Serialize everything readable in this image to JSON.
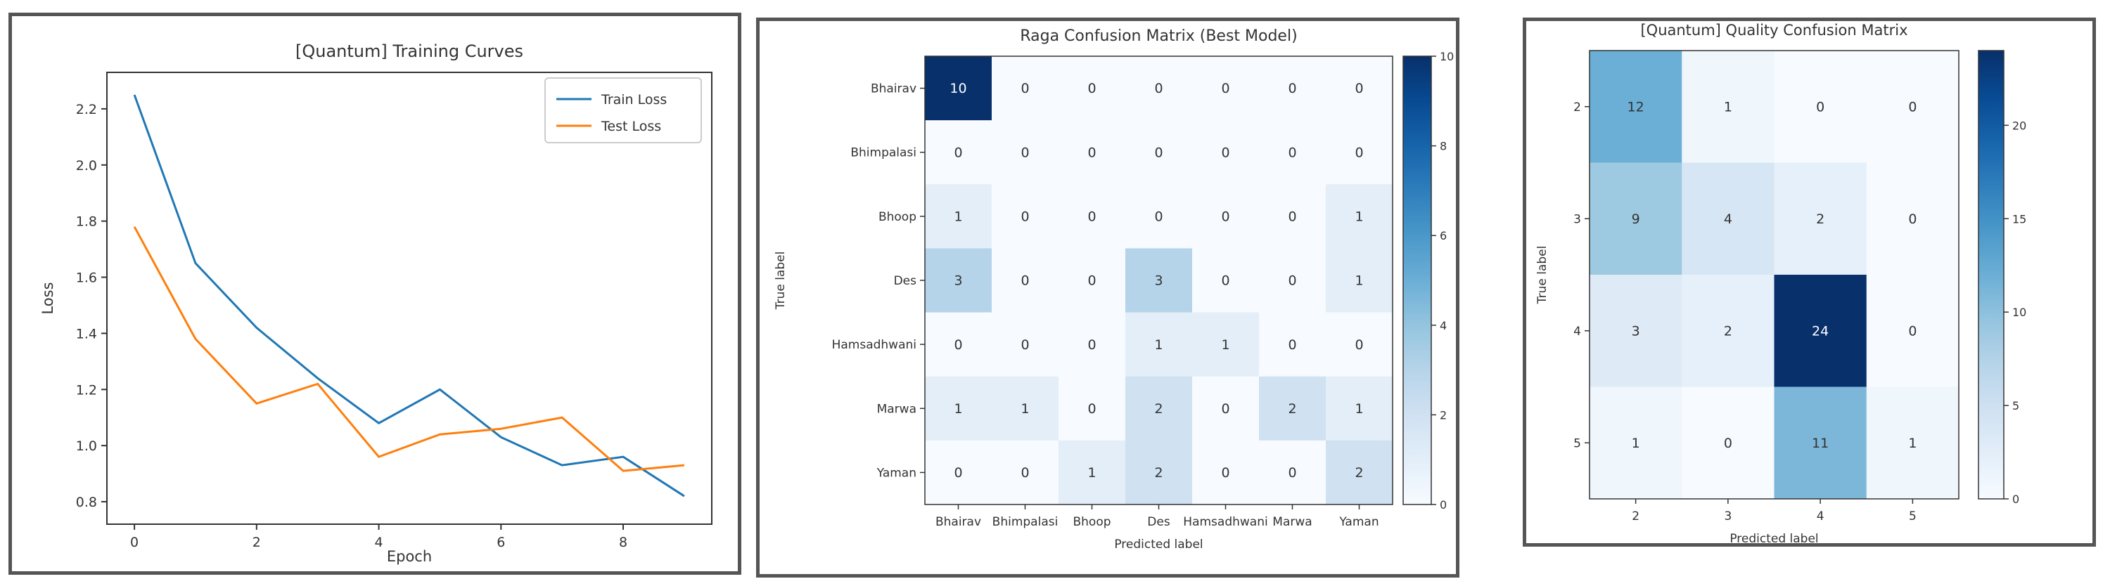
{
  "chart_data": [
    {
      "type": "line",
      "title": "[Quantum] Training Curves",
      "xlabel": "Epoch",
      "ylabel": "Loss",
      "x": [
        0,
        1,
        2,
        3,
        4,
        5,
        6,
        7,
        8,
        9
      ],
      "xticks": [
        "0",
        "2",
        "4",
        "6",
        "8"
      ],
      "yticks": [
        "0.8",
        "1.0",
        "1.2",
        "1.4",
        "1.6",
        "1.8",
        "2.0",
        "2.2"
      ],
      "xlim": [
        -0.45,
        9.45
      ],
      "ylim": [
        0.72,
        2.33
      ],
      "grid": false,
      "legend_position": "upper right",
      "series": [
        {
          "name": "Train Loss",
          "color": "#1f77b4",
          "values": [
            2.25,
            1.65,
            1.42,
            1.24,
            1.08,
            1.2,
            1.03,
            0.93,
            0.96,
            0.82
          ]
        },
        {
          "name": "Test Loss",
          "color": "#ff7f0e",
          "values": [
            1.78,
            1.38,
            1.15,
            1.22,
            0.96,
            1.04,
            1.06,
            1.1,
            0.91,
            0.93
          ]
        }
      ]
    },
    {
      "type": "heatmap",
      "title": "Raga Confusion Matrix (Best Model)",
      "xlabel": "Predicted label",
      "ylabel": "True label",
      "x_categories": [
        "Bhairav",
        "Bhimpalasi",
        "Bhoop",
        "Des",
        "Hamsadhwani",
        "Marwa",
        "Yaman"
      ],
      "y_categories": [
        "Bhairav",
        "Bhimpalasi",
        "Bhoop",
        "Des",
        "Hamsadhwani",
        "Marwa",
        "Yaman"
      ],
      "matrix": [
        [
          10,
          0,
          0,
          0,
          0,
          0,
          0
        ],
        [
          0,
          0,
          0,
          0,
          0,
          0,
          0
        ],
        [
          1,
          0,
          0,
          0,
          0,
          0,
          1
        ],
        [
          3,
          0,
          0,
          3,
          0,
          0,
          1
        ],
        [
          0,
          0,
          0,
          1,
          1,
          0,
          0
        ],
        [
          1,
          1,
          0,
          2,
          0,
          2,
          1
        ],
        [
          0,
          0,
          1,
          2,
          0,
          0,
          2
        ]
      ],
      "colormap": "Blues",
      "vmin": 0,
      "vmax": 10,
      "colorbar_ticks": [
        "0",
        "2",
        "4",
        "6",
        "8",
        "10"
      ]
    },
    {
      "type": "heatmap",
      "title": "[Quantum] Quality Confusion Matrix",
      "xlabel": "Predicted label",
      "ylabel": "True label",
      "x_categories": [
        "2",
        "3",
        "4",
        "5"
      ],
      "y_categories": [
        "2",
        "3",
        "4",
        "5"
      ],
      "matrix": [
        [
          12,
          1,
          0,
          0
        ],
        [
          9,
          4,
          2,
          0
        ],
        [
          3,
          2,
          24,
          0
        ],
        [
          1,
          0,
          11,
          1
        ]
      ],
      "colormap": "Blues",
      "vmin": 0,
      "vmax": 24,
      "colorbar_ticks": [
        "0",
        "5",
        "10",
        "15",
        "20"
      ]
    }
  ]
}
